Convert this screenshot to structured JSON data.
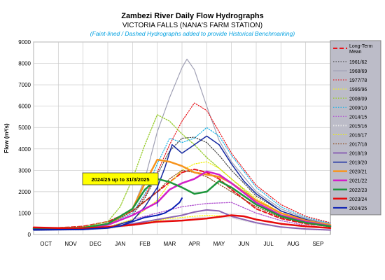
{
  "chart_data": {
    "type": "line",
    "title": "Zambezi River Daily Flow Hydrographs",
    "subtitle": "VICTORIA FALLS (NANA'S FARM STATION)",
    "note": "(Faint-lined / Dashed Hydrographs added to provide Historical Benchmarking)",
    "ylabel": "Flow (m³/s)",
    "xlabel": "",
    "ylim": [
      0,
      9000
    ],
    "yticks": [
      "0",
      "1000",
      "2000",
      "3000",
      "4000",
      "5000",
      "6000",
      "7000",
      "8000",
      "9000"
    ],
    "xlim": [
      0,
      12
    ],
    "categories": [
      "OCT",
      "NOV",
      "DEC",
      "JAN",
      "FEB",
      "MAR",
      "APR",
      "MAY",
      "JUN",
      "JUL",
      "AUG",
      "SEP"
    ],
    "grid": true,
    "legend_position": "right",
    "annotation": "2024/25 up to 31/3/2025",
    "series": [
      {
        "name": "Long-Term Mean",
        "color": "#e8141b",
        "dash": "dashed",
        "width": 2,
        "x": [
          0,
          1,
          2,
          3,
          4,
          5,
          6,
          6.5,
          7,
          7.5,
          8,
          9,
          10,
          11,
          12
        ],
        "y": [
          300,
          310,
          380,
          600,
          1100,
          2000,
          2900,
          3050,
          2900,
          2600,
          2100,
          1200,
          750,
          500,
          380
        ]
      },
      {
        "name": "1961/62",
        "color": "#404040",
        "dash": "dotted",
        "width": 1.2,
        "x": [
          0,
          2,
          3,
          4,
          4.5,
          5,
          5.5,
          6,
          6.5,
          7,
          7.5,
          8,
          9,
          10,
          11,
          12
        ],
        "y": [
          250,
          300,
          450,
          900,
          1700,
          2800,
          3900,
          4500,
          4550,
          4300,
          3700,
          3000,
          1800,
          1100,
          700,
          450
        ]
      },
      {
        "name": "1968/69",
        "color": "#a0a0b4",
        "dash": "solid",
        "width": 1.2,
        "x": [
          0,
          2,
          3,
          4,
          4.5,
          5,
          5.5,
          6,
          6.2,
          6.5,
          7,
          7.5,
          8,
          9,
          10,
          11,
          12
        ],
        "y": [
          280,
          320,
          500,
          1200,
          2600,
          4800,
          6400,
          7800,
          8200,
          7700,
          6000,
          4400,
          3400,
          2000,
          1200,
          750,
          500
        ]
      },
      {
        "name": "1977/78",
        "color": "#e8141b",
        "dash": "dotted",
        "width": 1.2,
        "x": [
          0,
          2,
          3,
          4,
          4.5,
          5,
          5.5,
          6,
          6.5,
          7,
          7.5,
          8,
          9,
          10,
          11,
          12
        ],
        "y": [
          300,
          330,
          500,
          1000,
          1800,
          2900,
          4200,
          5300,
          6150,
          5800,
          4800,
          3800,
          2300,
          1400,
          850,
          550
        ]
      },
      {
        "name": "1995/96",
        "color": "#ffff00",
        "dash": "dotted",
        "width": 1.2,
        "x": [
          0,
          2,
          3,
          4,
          5,
          5.5,
          6,
          6.5,
          7,
          8,
          9,
          10,
          11,
          12
        ],
        "y": [
          200,
          220,
          300,
          450,
          650,
          750,
          800,
          850,
          900,
          850,
          550,
          350,
          250,
          200
        ]
      },
      {
        "name": "2008/09",
        "color": "#9acd32",
        "dash": "dotted",
        "width": 1.4,
        "x": [
          0,
          2,
          3,
          3.5,
          4,
          4.5,
          5,
          5.5,
          6,
          6.5,
          7,
          8,
          9,
          10,
          11,
          12
        ],
        "y": [
          300,
          350,
          600,
          1300,
          2600,
          4200,
          5600,
          5300,
          4700,
          4200,
          3600,
          2600,
          1600,
          1000,
          650,
          420
        ]
      },
      {
        "name": "2009/10",
        "color": "#1eb4e6",
        "dash": "dotted",
        "width": 1.2,
        "x": [
          0,
          2,
          3,
          4,
          4.5,
          5,
          5.5,
          6,
          6.5,
          7,
          7.5,
          8,
          9,
          10,
          11,
          12
        ],
        "y": [
          280,
          320,
          500,
          1000,
          1900,
          3300,
          4500,
          4300,
          4500,
          5000,
          4600,
          3700,
          2200,
          1300,
          800,
          520
        ]
      },
      {
        "name": "2014/15",
        "color": "#b45ad2",
        "dash": "dotted",
        "width": 1.4,
        "x": [
          0,
          2,
          3,
          4,
          5,
          6,
          7,
          8,
          9,
          10,
          11,
          12
        ],
        "y": [
          220,
          250,
          350,
          700,
          1000,
          1300,
          1450,
          1500,
          1000,
          650,
          420,
          300
        ]
      },
      {
        "name": "2015/16",
        "color": "#e6e6e6",
        "dash": "dotted",
        "width": 2,
        "x": [
          0,
          2,
          3,
          4,
          5,
          6,
          7,
          8,
          9,
          10,
          11,
          12
        ],
        "y": [
          200,
          220,
          280,
          420,
          600,
          750,
          820,
          780,
          520,
          330,
          240,
          200
        ]
      },
      {
        "name": "2016/17",
        "color": "#f0f000",
        "dash": "dotted",
        "width": 1.2,
        "x": [
          0,
          2,
          3,
          4,
          5,
          5.5,
          6,
          6.5,
          7,
          7.5,
          8,
          9,
          10,
          11,
          12
        ],
        "y": [
          230,
          260,
          350,
          700,
          1600,
          2400,
          3000,
          3300,
          3400,
          3100,
          2600,
          1700,
          1000,
          620,
          400
        ]
      },
      {
        "name": "2017/18",
        "color": "#8b4513",
        "dash": "dotted",
        "width": 1.2,
        "x": [
          0,
          2,
          3,
          4,
          5,
          5.5,
          6,
          6.5,
          7,
          8,
          9,
          10,
          11,
          12
        ],
        "y": [
          260,
          300,
          450,
          1100,
          2000,
          2600,
          3000,
          2900,
          2700,
          2000,
          1300,
          800,
          520,
          350
        ]
      },
      {
        "name": "2018/19",
        "color": "#8c64b4",
        "dash": "solid",
        "width": 2,
        "x": [
          0,
          2,
          3,
          4,
          5,
          6,
          6.5,
          7,
          7.5,
          8,
          9,
          10,
          11,
          12
        ],
        "y": [
          230,
          250,
          320,
          500,
          700,
          900,
          1050,
          1150,
          1100,
          850,
          550,
          350,
          260,
          210
        ]
      },
      {
        "name": "2019/20",
        "color": "#1428a0",
        "dash": "solid",
        "width": 1.5,
        "x": [
          0,
          2,
          3,
          4,
          4.5,
          5,
          5.3,
          5.6,
          6,
          6.5,
          7,
          7.5,
          8,
          8.5,
          9,
          10,
          11,
          12
        ],
        "y": [
          200,
          230,
          320,
          650,
          1300,
          2200,
          3100,
          4200,
          3800,
          4200,
          4600,
          4200,
          3300,
          2500,
          1900,
          1100,
          700,
          450
        ]
      },
      {
        "name": "2020/21",
        "color": "#f7941d",
        "dash": "solid",
        "width": 2.5,
        "x": [
          0,
          2,
          3,
          4,
          4.5,
          5,
          5.5,
          6,
          6.5,
          7,
          7.5,
          8,
          9,
          10,
          11,
          12
        ],
        "y": [
          250,
          280,
          450,
          1200,
          2400,
          3500,
          3400,
          3200,
          2900,
          2800,
          2700,
          2400,
          1600,
          1000,
          650,
          450
        ]
      },
      {
        "name": "2021/22",
        "color": "#d21ec8",
        "dash": "solid",
        "width": 2.5,
        "x": [
          0,
          2,
          3,
          4,
          5,
          5.5,
          6,
          6.5,
          7,
          7.5,
          8,
          9,
          10,
          11,
          12
        ],
        "y": [
          260,
          300,
          450,
          900,
          1500,
          2100,
          2400,
          2600,
          2950,
          2800,
          2400,
          1500,
          900,
          600,
          400
        ]
      },
      {
        "name": "2022/23",
        "color": "#1e963c",
        "dash": "solid",
        "width": 2.5,
        "x": [
          0,
          2,
          3,
          4,
          4.5,
          5,
          5.5,
          6,
          6.5,
          7,
          7.5,
          8,
          9,
          10,
          11,
          12
        ],
        "y": [
          280,
          310,
          500,
          1200,
          2100,
          2600,
          2450,
          2200,
          1900,
          2000,
          2500,
          2200,
          1400,
          850,
          550,
          380
        ]
      },
      {
        "name": "2023/24",
        "color": "#e60a0a",
        "dash": "solid",
        "width": 2.5,
        "x": [
          0,
          1,
          2,
          3,
          4,
          5,
          6,
          7,
          8,
          8.5,
          9,
          10,
          11,
          12
        ],
        "y": [
          330,
          300,
          290,
          350,
          450,
          600,
          650,
          750,
          900,
          850,
          700,
          500,
          380,
          300
        ]
      },
      {
        "name": "2024/25",
        "color": "#0a1eb4",
        "dash": "solid",
        "width": 2,
        "x": [
          0,
          1,
          2,
          3,
          3.5,
          4,
          4.5,
          5,
          5.3,
          5.6,
          5.9,
          6.0
        ],
        "y": [
          240,
          230,
          240,
          300,
          400,
          600,
          800,
          900,
          1000,
          1200,
          1500,
          1700
        ]
      }
    ]
  }
}
